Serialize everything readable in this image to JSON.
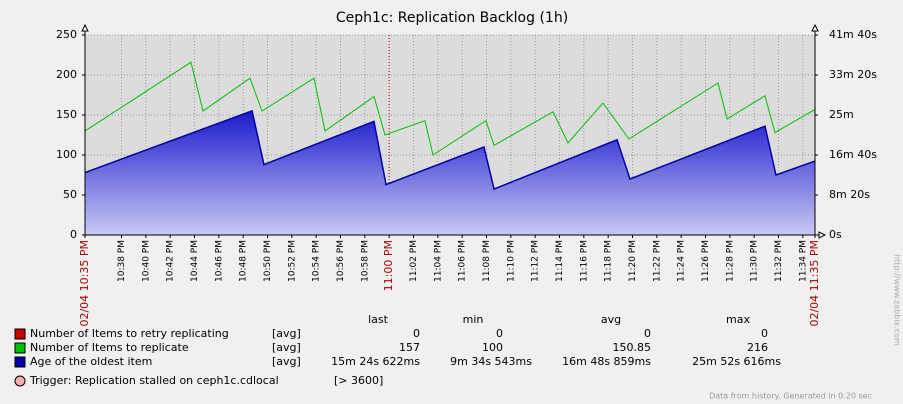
{
  "chart_data": {
    "type": "line",
    "title": "Ceph1c: Replication Backlog (1h)",
    "xlim": [
      0,
      60
    ],
    "xticks": [
      {
        "value": 0,
        "label": "02/04 10:35 PM",
        "color": "#aa0000"
      },
      {
        "value": 3,
        "label": "10:38 PM"
      },
      {
        "value": 5,
        "label": "10:40 PM"
      },
      {
        "value": 7,
        "label": "10:42 PM"
      },
      {
        "value": 9,
        "label": "10:44 PM"
      },
      {
        "value": 11,
        "label": "10:46 PM"
      },
      {
        "value": 13,
        "label": "10:48 PM"
      },
      {
        "value": 15,
        "label": "10:50 PM"
      },
      {
        "value": 17,
        "label": "10:52 PM"
      },
      {
        "value": 19,
        "label": "10:54 PM"
      },
      {
        "value": 21,
        "label": "10:56 PM"
      },
      {
        "value": 23,
        "label": "10:58 PM"
      },
      {
        "value": 25,
        "label": "11:00 PM",
        "color": "#aa0000"
      },
      {
        "value": 27,
        "label": "11:02 PM"
      },
      {
        "value": 29,
        "label": "11:04 PM"
      },
      {
        "value": 31,
        "label": "11:06 PM"
      },
      {
        "value": 33,
        "label": "11:08 PM"
      },
      {
        "value": 35,
        "label": "11:10 PM"
      },
      {
        "value": 37,
        "label": "11:12 PM"
      },
      {
        "value": 39,
        "label": "11:14 PM"
      },
      {
        "value": 41,
        "label": "11:16 PM"
      },
      {
        "value": 43,
        "label": "11:18 PM"
      },
      {
        "value": 45,
        "label": "11:20 PM"
      },
      {
        "value": 47,
        "label": "11:22 PM"
      },
      {
        "value": 49,
        "label": "11:24 PM"
      },
      {
        "value": 51,
        "label": "11:26 PM"
      },
      {
        "value": 53,
        "label": "11:28 PM"
      },
      {
        "value": 55,
        "label": "11:30 PM"
      },
      {
        "value": 57,
        "label": "11:32 PM"
      },
      {
        "value": 59,
        "label": "11:34 PM"
      },
      {
        "value": 60,
        "label": "02/04 11:35 PM",
        "color": "#aa0000"
      }
    ],
    "ylim": [
      0,
      250
    ],
    "yticks": [
      0,
      50,
      100,
      150,
      200,
      250
    ],
    "y2lim": [
      0,
      2500
    ],
    "y2ticks": [
      {
        "value": 0,
        "label": "0s"
      },
      {
        "value": 500,
        "label": "8m 20s"
      },
      {
        "value": 1000,
        "label": "16m 40s"
      },
      {
        "value": 1500,
        "label": "25m"
      },
      {
        "value": 2000,
        "label": "33m 20s"
      },
      {
        "value": 2500,
        "label": "41m 40s"
      }
    ],
    "grid": true,
    "legend_headers": [
      "last",
      "min",
      "avg",
      "max"
    ],
    "series": [
      {
        "name": "Number of Items to retry replicating",
        "color": "#cc0000",
        "func": "[avg]",
        "x": [
          0,
          60
        ],
        "values": [
          0,
          0
        ],
        "last": 0,
        "min": 0,
        "avg": 0,
        "max": 0
      },
      {
        "name": "Number of Items to replicate",
        "color": "#00c000",
        "func": "[avg]",
        "x": [
          0,
          8.71,
          9.7,
          13.56,
          14.55,
          18.82,
          19.73,
          23.75,
          24.66,
          27.94,
          28.6,
          32.96,
          33.62,
          38.47,
          39.7,
          42.57,
          44.71,
          52.03,
          52.77,
          55.89,
          56.71,
          60
        ],
        "values": [
          130,
          216,
          155,
          196,
          155,
          196,
          130,
          173,
          125,
          143,
          100,
          143,
          112,
          154,
          115,
          165,
          120,
          190,
          145,
          174,
          128,
          157
        ],
        "last": 157,
        "min": 100,
        "avg": 150.85,
        "max": 216
      },
      {
        "name": "Age of the oldest item",
        "color": "#0000aa",
        "func": "[avg]",
        "axis": "y2",
        "area": true,
        "x": [
          0,
          13.73,
          14.71,
          23.75,
          24.74,
          32.79,
          33.62,
          43.73,
          44.79,
          55.89,
          56.79,
          60
        ],
        "values": [
          780,
          1552,
          880,
          1420,
          630,
          1100,
          574,
          1190,
          700,
          1360,
          750,
          924
        ],
        "last": "15m 24s 622ms",
        "min": "9m 34s 543ms",
        "avg": "16m 48s 859ms",
        "max": "25m 52s 616ms"
      }
    ],
    "trigger": {
      "label": "Trigger: Replication stalled on ceph1c.cdlocal",
      "threshold": "[> 3600]",
      "color": "#ffaaaa"
    },
    "footer": "Data from history. Generated in 0.20 sec",
    "watermark": "http://www.zabbix.com"
  }
}
